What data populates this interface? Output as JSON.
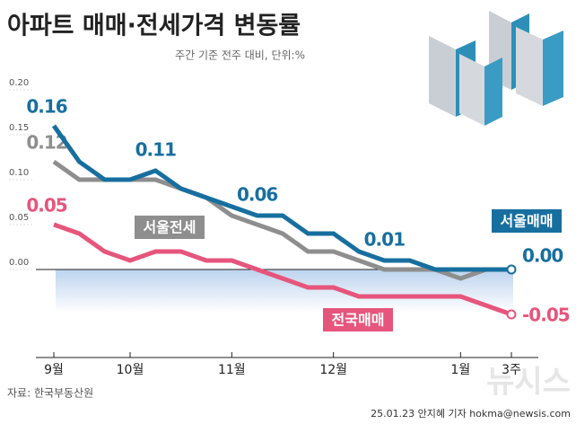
{
  "chart_data": {
    "type": "line",
    "title": "아파트 매매·전세가격 변동률",
    "subtitle": "주간 기준 전주 대비, 단위:%",
    "source": "자료: 한국부동산원",
    "credit": "25.01.23 안지혜 기자 hokma@newsis.com",
    "watermark": "뉴시스",
    "categories": [
      "9월",
      null,
      null,
      "10월",
      null,
      null,
      null,
      "11월",
      null,
      null,
      null,
      "12월",
      null,
      null,
      null,
      null,
      "1월",
      null,
      "3주"
    ],
    "ylim": [
      -0.1,
      0.2
    ],
    "yticks": [
      {
        "value": 0.2,
        "label": "0.20"
      },
      0.15,
      {
        "value": 0.1,
        "label": "0.10"
      },
      0.05,
      {
        "value": 0,
        "label": "0.00"
      }
    ],
    "grid": false,
    "series": [
      {
        "name": "서울전세",
        "color": "#8e8e8e",
        "values": [
          0.12,
          0.1,
          0.1,
          0.1,
          0.1,
          0.09,
          0.08,
          0.06,
          0.05,
          0.04,
          0.02,
          0.02,
          0.01,
          0.0,
          0.0,
          0.0,
          -0.01,
          0.0,
          0.0
        ],
        "value_labels": [
          "0.12",
          null,
          null,
          null,
          null,
          null,
          null,
          null,
          null,
          null,
          null,
          null,
          null,
          null,
          null,
          null,
          null,
          null,
          null
        ]
      },
      {
        "name": "전국매매",
        "color": "#e6557c",
        "values": [
          0.05,
          0.04,
          0.02,
          0.01,
          0.02,
          0.02,
          0.01,
          0.01,
          0.0,
          -0.01,
          -0.02,
          -0.02,
          -0.03,
          -0.03,
          -0.03,
          -0.03,
          -0.03,
          -0.04,
          -0.05
        ],
        "value_labels": [
          "0.05",
          null,
          null,
          null,
          null,
          null,
          null,
          null,
          null,
          null,
          null,
          null,
          null,
          null,
          null,
          null,
          null,
          null,
          "-0.05"
        ]
      },
      {
        "name": "서울매매",
        "color": "#176f9f",
        "values": [
          0.16,
          0.12,
          0.1,
          0.1,
          0.11,
          0.09,
          0.08,
          0.07,
          0.06,
          0.06,
          0.04,
          0.04,
          0.02,
          0.01,
          0.01,
          0.0,
          0.0,
          0.0,
          0.0
        ],
        "value_labels": [
          "0.16",
          null,
          null,
          null,
          "0.11",
          null,
          null,
          null,
          "0.06",
          null,
          null,
          null,
          null,
          "0.01",
          null,
          null,
          null,
          null,
          "0.00"
        ]
      }
    ]
  }
}
